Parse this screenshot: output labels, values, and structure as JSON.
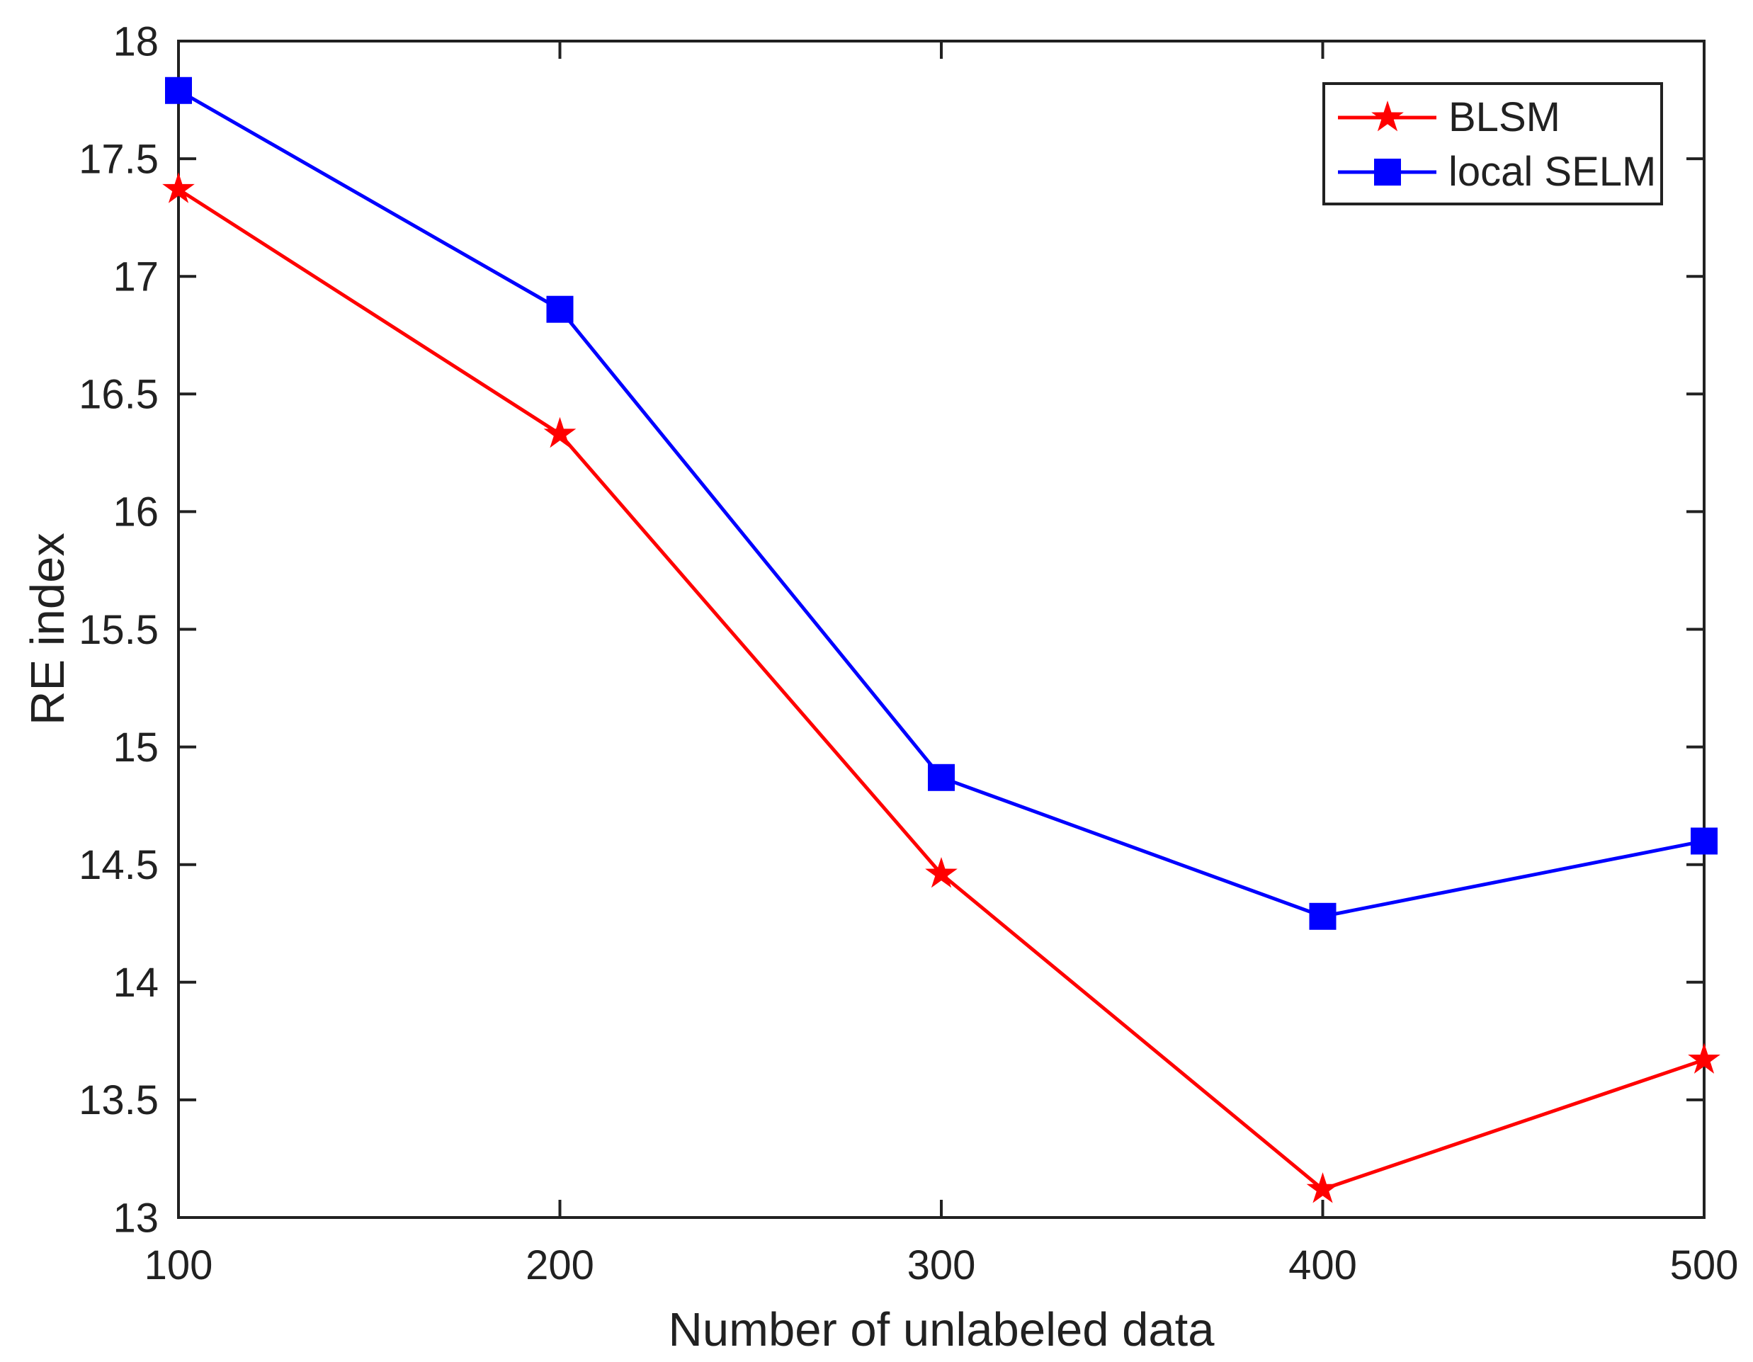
{
  "chart_data": {
    "type": "line",
    "title": "",
    "xlabel": "Number of unlabeled data",
    "ylabel": "RE index",
    "x": [
      100,
      200,
      300,
      400,
      500
    ],
    "series": [
      {
        "name": "BLSM",
        "color": "#ff0000",
        "marker": "pentagram",
        "values": [
          17.37,
          16.33,
          14.46,
          13.12,
          13.67
        ]
      },
      {
        "name": "local SELM",
        "color": "#0000ff",
        "marker": "square",
        "values": [
          17.79,
          16.86,
          14.87,
          14.28,
          14.6
        ]
      }
    ],
    "xlim": [
      100,
      500
    ],
    "ylim": [
      13,
      18
    ],
    "xticks": [
      100,
      200,
      300,
      400,
      500
    ],
    "yticks": [
      13,
      13.5,
      14,
      14.5,
      15,
      15.5,
      16,
      16.5,
      17,
      17.5,
      18
    ],
    "grid": false,
    "legend_position": "top-right",
    "legend_entries": [
      "BLSM",
      "local SELM"
    ],
    "axis_color": "#212121",
    "background_color": "#ffffff"
  }
}
